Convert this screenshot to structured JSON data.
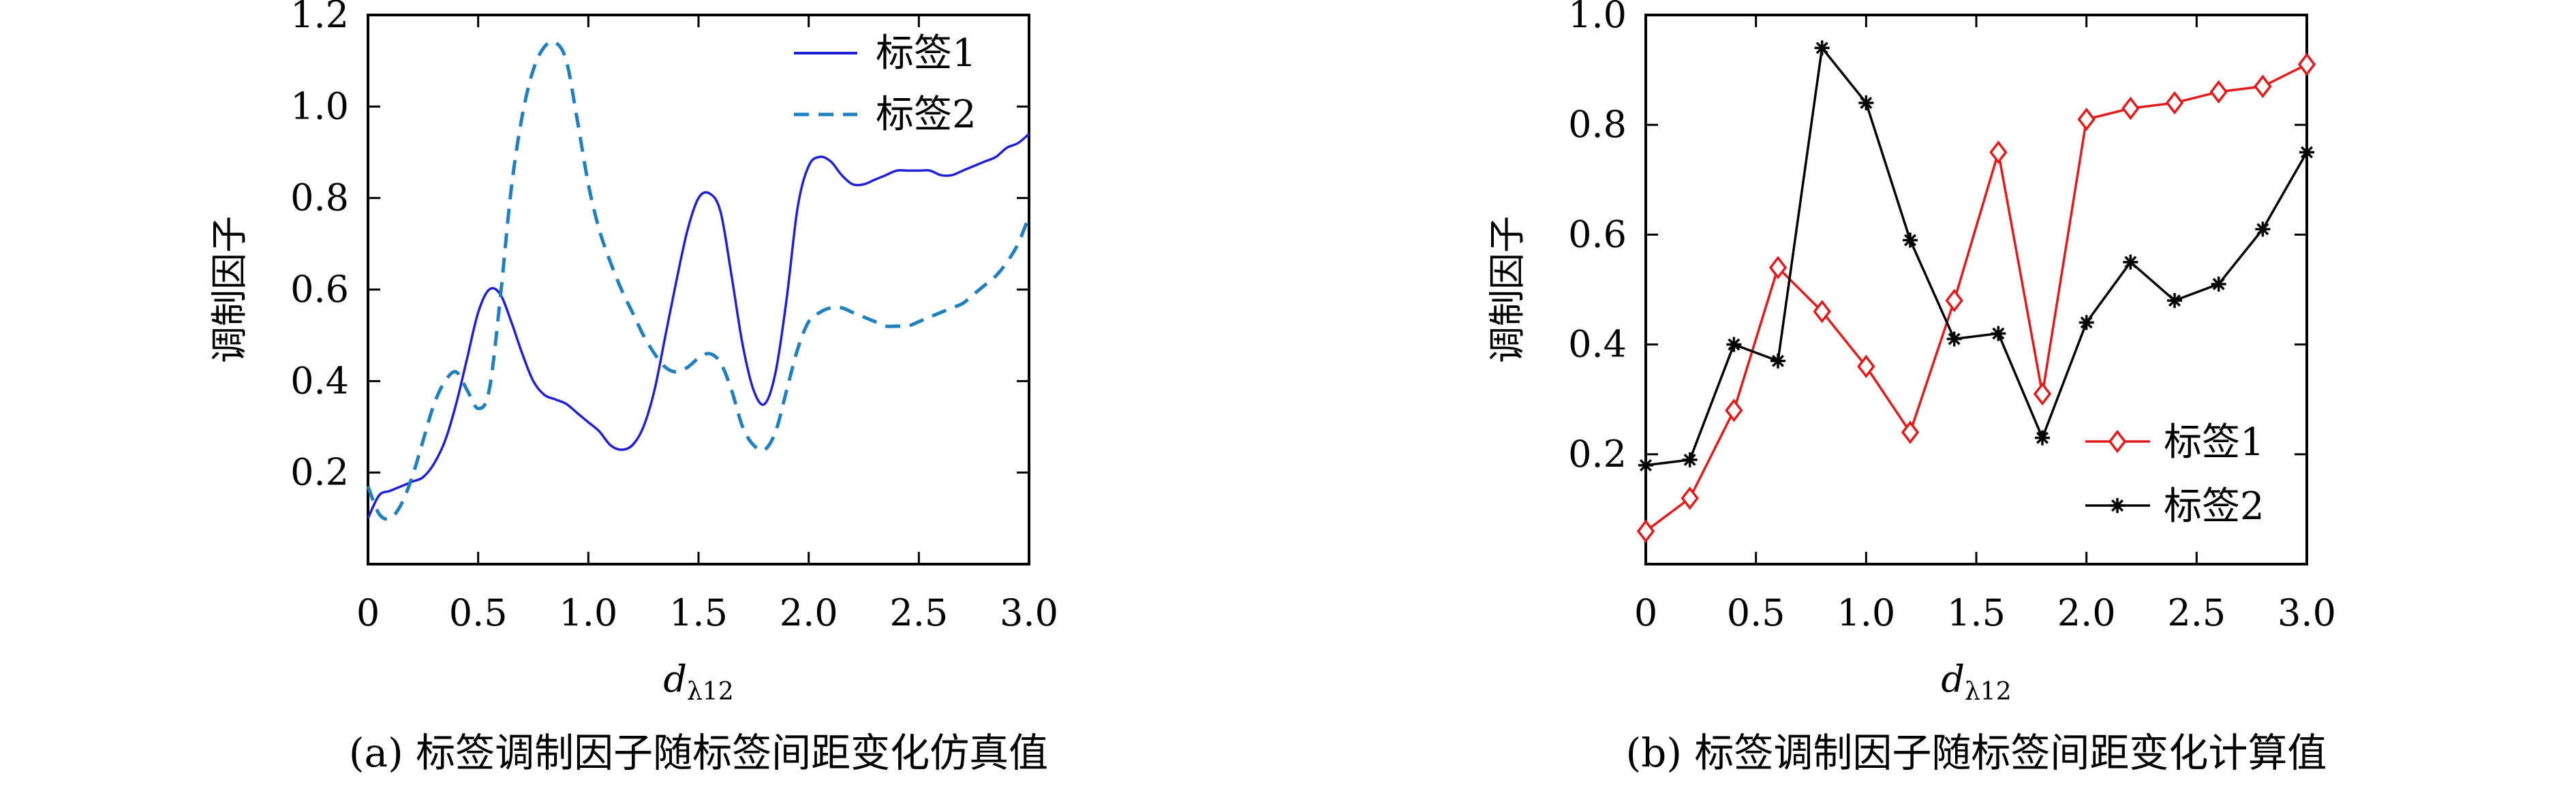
{
  "chart_data": [
    {
      "type": "line",
      "panel": "a",
      "caption": "(a) 标签调制因子随标签间距变化仿真值",
      "xlabel_main": "d",
      "xlabel_sub": "λ12",
      "ylabel": "调制因子",
      "xlim": [
        0,
        3.0
      ],
      "ylim": [
        0,
        1.2
      ],
      "xticks": [
        0,
        0.5,
        1.0,
        1.5,
        2.0,
        2.5,
        3.0
      ],
      "xtick_labels": [
        "0",
        "0.5",
        "1.0",
        "1.5",
        "2.0",
        "2.5",
        "3.0"
      ],
      "yticks": [
        0.2,
        0.4,
        0.6,
        0.8,
        1.0,
        1.2
      ],
      "ytick_labels": [
        "0.2",
        "0.4",
        "0.6",
        "0.8",
        "1.0",
        "1.2"
      ],
      "legend_position": "top-right",
      "series": [
        {
          "name": "标签1",
          "color": "#1f1fd6",
          "style": "solid",
          "x": [
            0.0,
            0.05,
            0.1,
            0.15,
            0.2,
            0.25,
            0.3,
            0.35,
            0.4,
            0.45,
            0.5,
            0.55,
            0.6,
            0.65,
            0.7,
            0.75,
            0.8,
            0.85,
            0.9,
            0.95,
            1.0,
            1.05,
            1.1,
            1.15,
            1.2,
            1.25,
            1.3,
            1.35,
            1.4,
            1.45,
            1.5,
            1.55,
            1.6,
            1.65,
            1.7,
            1.75,
            1.8,
            1.85,
            1.9,
            1.95,
            2.0,
            2.05,
            2.1,
            2.15,
            2.2,
            2.25,
            2.3,
            2.35,
            2.4,
            2.45,
            2.5,
            2.55,
            2.6,
            2.65,
            2.7,
            2.75,
            2.8,
            2.85,
            2.9,
            2.95,
            3.0
          ],
          "y": [
            0.1,
            0.15,
            0.16,
            0.17,
            0.18,
            0.19,
            0.22,
            0.27,
            0.35,
            0.45,
            0.55,
            0.6,
            0.59,
            0.53,
            0.46,
            0.4,
            0.37,
            0.36,
            0.35,
            0.33,
            0.31,
            0.29,
            0.26,
            0.25,
            0.26,
            0.3,
            0.38,
            0.5,
            0.62,
            0.73,
            0.8,
            0.81,
            0.77,
            0.63,
            0.48,
            0.38,
            0.35,
            0.42,
            0.58,
            0.78,
            0.87,
            0.89,
            0.88,
            0.85,
            0.83,
            0.83,
            0.84,
            0.85,
            0.86,
            0.86,
            0.86,
            0.86,
            0.85,
            0.85,
            0.86,
            0.87,
            0.88,
            0.89,
            0.91,
            0.92,
            0.94
          ]
        },
        {
          "name": "标签2",
          "color": "#1f7fbf",
          "style": "dashed",
          "x": [
            0.0,
            0.05,
            0.1,
            0.15,
            0.2,
            0.25,
            0.3,
            0.35,
            0.4,
            0.45,
            0.5,
            0.55,
            0.6,
            0.65,
            0.7,
            0.75,
            0.8,
            0.85,
            0.9,
            0.95,
            1.0,
            1.05,
            1.1,
            1.15,
            1.2,
            1.25,
            1.3,
            1.35,
            1.4,
            1.45,
            1.5,
            1.55,
            1.6,
            1.65,
            1.7,
            1.75,
            1.8,
            1.85,
            1.9,
            1.95,
            2.0,
            2.05,
            2.1,
            2.15,
            2.2,
            2.25,
            2.3,
            2.35,
            2.4,
            2.45,
            2.5,
            2.55,
            2.6,
            2.65,
            2.7,
            2.75,
            2.8,
            2.85,
            2.9,
            2.95,
            3.0
          ],
          "y": [
            0.17,
            0.11,
            0.1,
            0.13,
            0.19,
            0.27,
            0.35,
            0.4,
            0.42,
            0.38,
            0.34,
            0.38,
            0.58,
            0.82,
            0.98,
            1.08,
            1.13,
            1.14,
            1.1,
            0.97,
            0.83,
            0.73,
            0.66,
            0.6,
            0.55,
            0.5,
            0.46,
            0.43,
            0.42,
            0.43,
            0.45,
            0.46,
            0.44,
            0.38,
            0.3,
            0.26,
            0.25,
            0.29,
            0.38,
            0.47,
            0.53,
            0.55,
            0.56,
            0.56,
            0.55,
            0.54,
            0.53,
            0.52,
            0.52,
            0.52,
            0.53,
            0.54,
            0.55,
            0.56,
            0.57,
            0.59,
            0.61,
            0.63,
            0.66,
            0.7,
            0.76
          ]
        }
      ]
    },
    {
      "type": "line",
      "panel": "b",
      "caption": "(b) 标签调制因子随标签间距变化计算值",
      "xlabel_main": "d",
      "xlabel_sub": "λ12",
      "ylabel": "调制因子",
      "xlim": [
        0,
        3.0
      ],
      "ylim": [
        0,
        1.0
      ],
      "xticks": [
        0,
        0.5,
        1.0,
        1.5,
        2.0,
        2.5,
        3.0
      ],
      "xtick_labels": [
        "0",
        "0.5",
        "1.0",
        "1.5",
        "2.0",
        "2.5",
        "3.0"
      ],
      "yticks": [
        0.2,
        0.4,
        0.6,
        0.8,
        1.0
      ],
      "ytick_labels": [
        "0.2",
        "0.4",
        "0.6",
        "0.8",
        "1.0"
      ],
      "legend_position": "bottom-right",
      "series": [
        {
          "name": "标签1",
          "color": "#e41a1a",
          "marker": "diamond",
          "x": [
            0.0,
            0.2,
            0.4,
            0.6,
            0.8,
            1.0,
            1.2,
            1.4,
            1.6,
            1.8,
            2.0,
            2.2,
            2.4,
            2.6,
            2.8,
            3.0
          ],
          "y": [
            0.06,
            0.12,
            0.28,
            0.54,
            0.46,
            0.36,
            0.24,
            0.48,
            0.75,
            0.31,
            0.81,
            0.83,
            0.84,
            0.86,
            0.87,
            0.91
          ]
        },
        {
          "name": "标签2",
          "color": "#000000",
          "marker": "star",
          "x": [
            0.0,
            0.2,
            0.4,
            0.6,
            0.8,
            1.0,
            1.2,
            1.4,
            1.6,
            1.8,
            2.0,
            2.2,
            2.4,
            2.6,
            2.8,
            3.0
          ],
          "y": [
            0.18,
            0.19,
            0.4,
            0.37,
            0.94,
            0.84,
            0.59,
            0.41,
            0.42,
            0.23,
            0.44,
            0.55,
            0.48,
            0.51,
            0.61,
            0.75
          ]
        }
      ]
    }
  ]
}
